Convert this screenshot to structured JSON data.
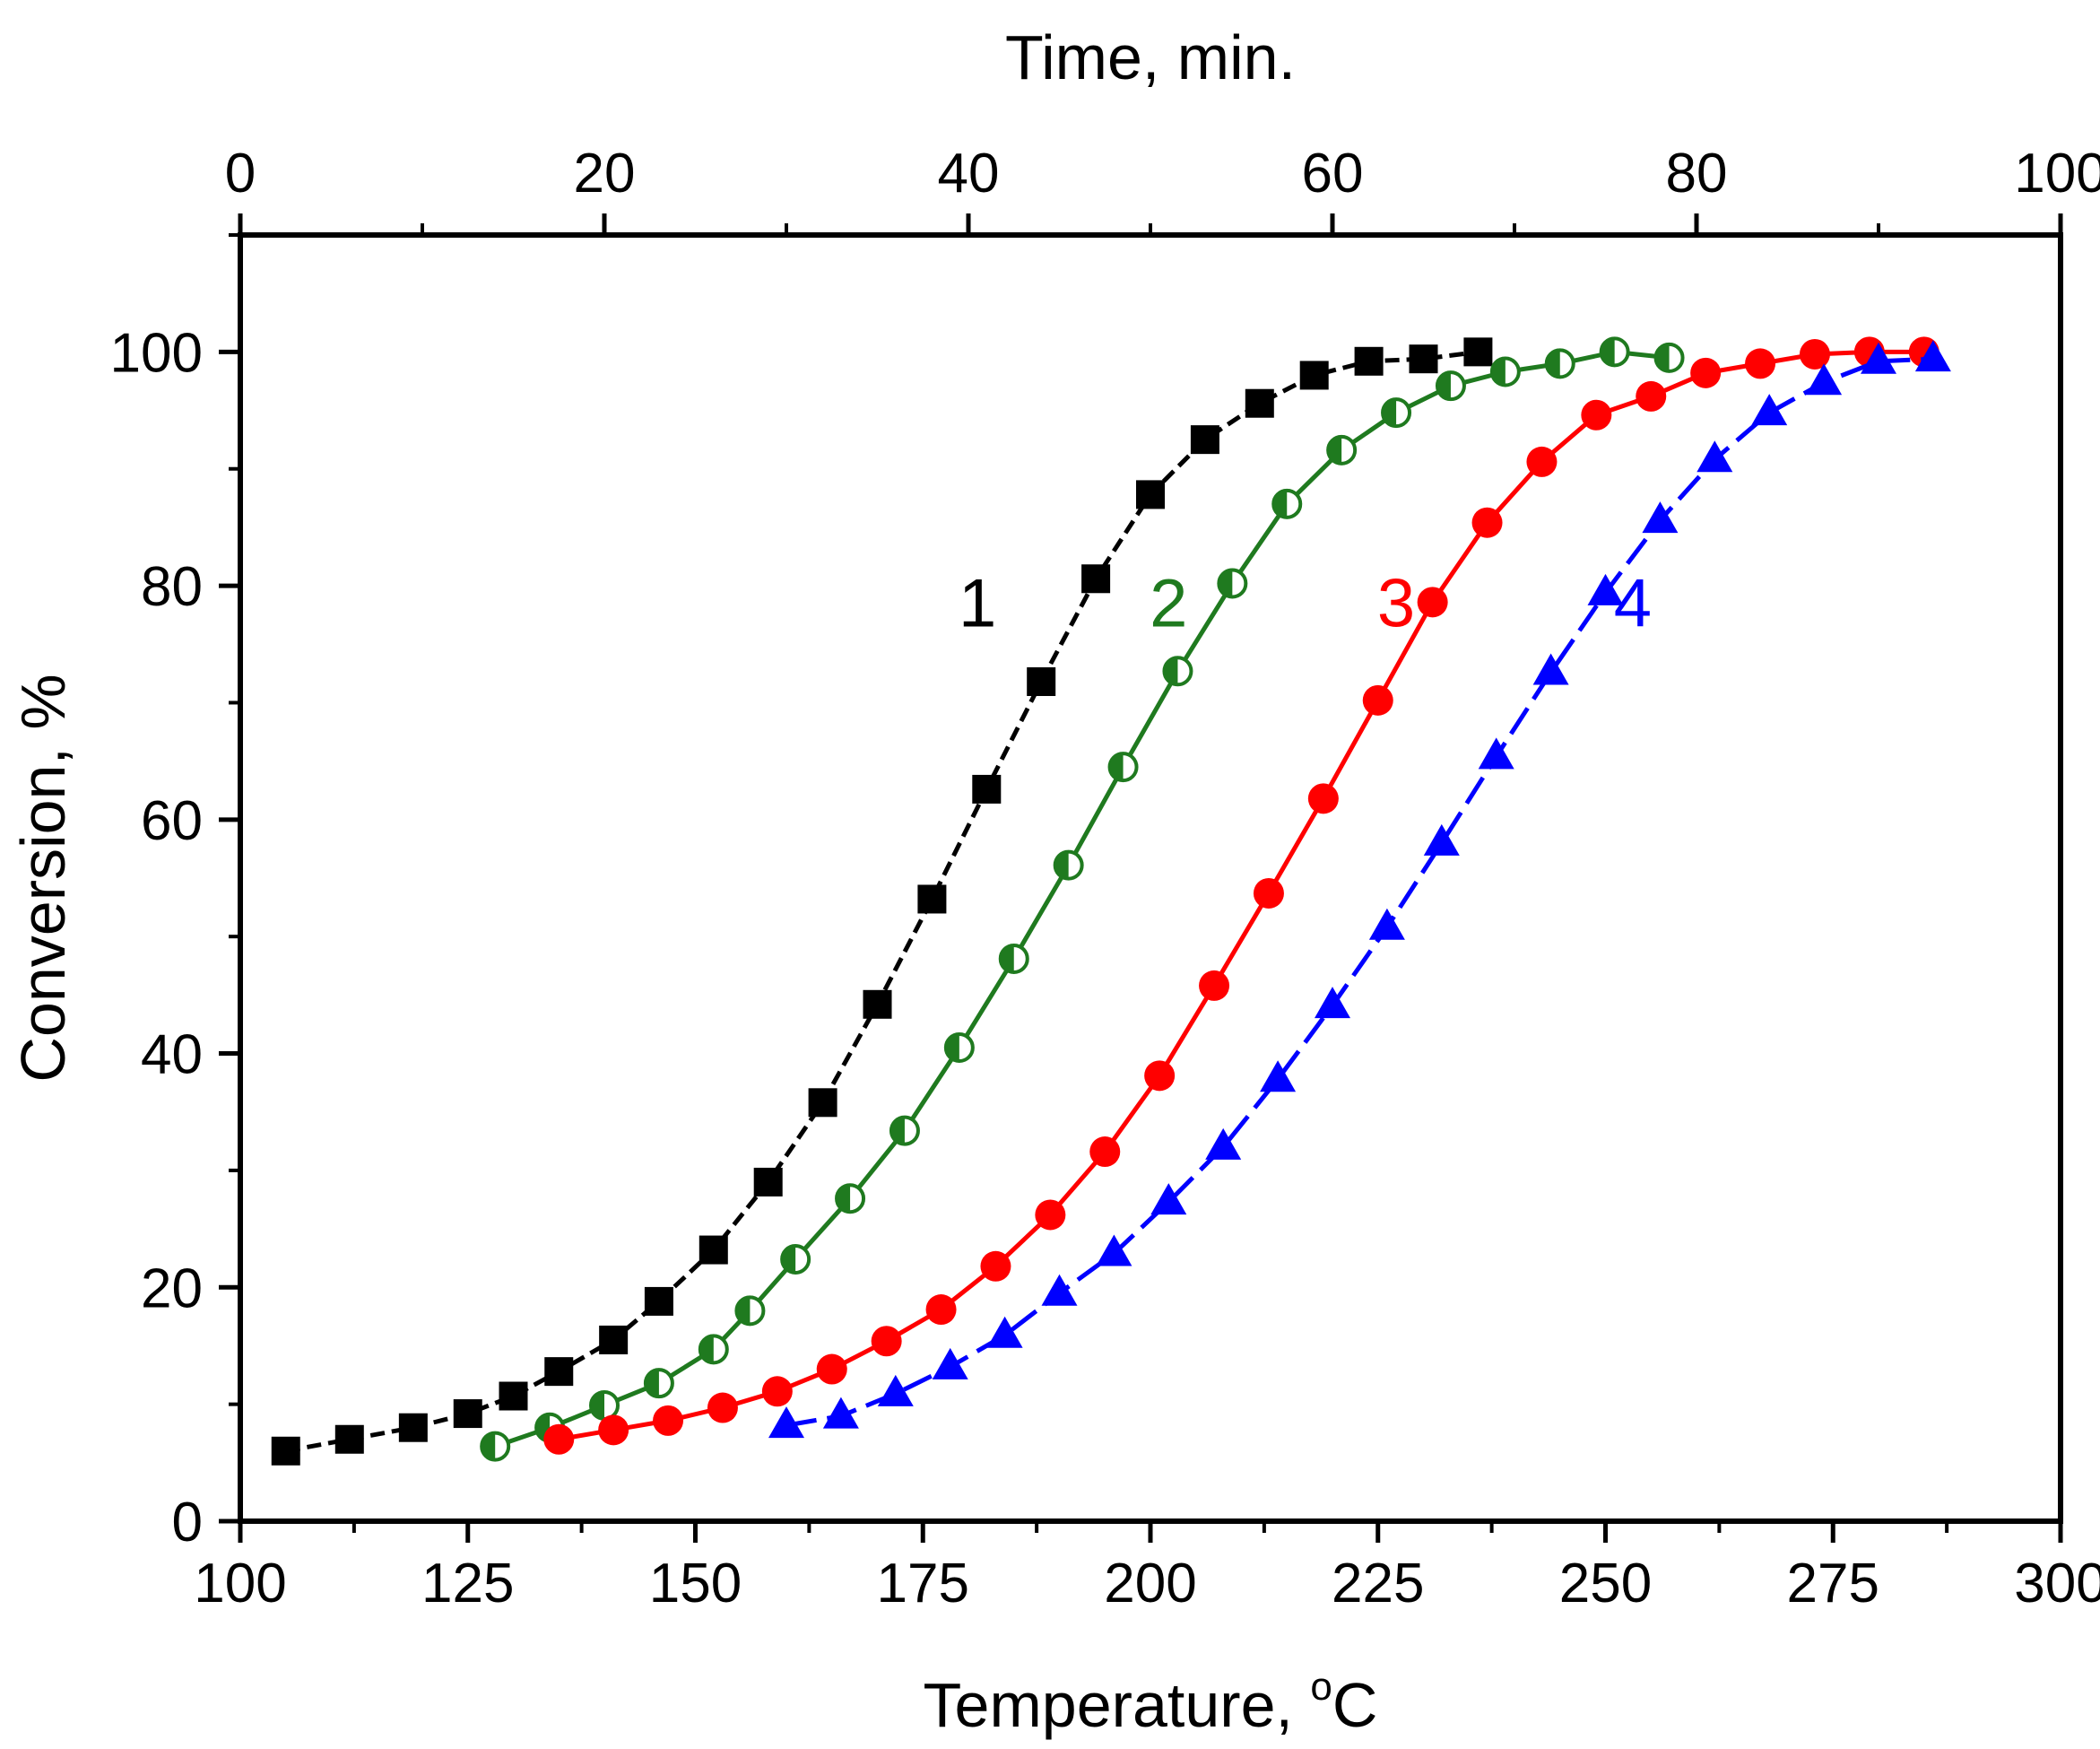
{
  "chart_data": {
    "type": "line",
    "title": "",
    "xlabel": "Temperature, ",
    "xlabel_unit_sup": "o",
    "xlabel_unit": "C",
    "ylabel": "Conversion, %",
    "x2label": "Time, min.",
    "xlim": [
      100,
      300
    ],
    "ylim": [
      0,
      110
    ],
    "x2lim": [
      0,
      100
    ],
    "x_ticks": [
      100,
      125,
      150,
      175,
      200,
      225,
      250,
      275,
      300
    ],
    "y_ticks": [
      0,
      20,
      40,
      60,
      80,
      100
    ],
    "x2_ticks": [
      0,
      20,
      40,
      60,
      80,
      100
    ],
    "grid": false,
    "series": [
      {
        "name": "1",
        "color": "#000000",
        "marker": "square",
        "line": "mixed",
        "x": [
          105,
          112,
          119,
          125,
          130,
          135,
          141,
          146,
          152,
          158,
          164,
          170,
          176,
          182,
          188,
          194,
          200,
          206,
          212,
          218,
          224,
          230,
          236
        ],
        "y": [
          6,
          7,
          8,
          9.2,
          10.7,
          12.8,
          15.5,
          18.8,
          23.2,
          29,
          35.8,
          44.2,
          53.2,
          62.6,
          71.8,
          80.6,
          87.8,
          92.5,
          95.6,
          98,
          99.2,
          99.4,
          100
        ]
      },
      {
        "name": "2",
        "color": "#1f7a1f",
        "marker": "half-filled-circle",
        "line": "solid",
        "x": [
          128,
          134,
          140,
          146,
          152,
          156,
          161,
          167,
          173,
          179,
          185,
          191,
          197,
          203,
          209,
          215,
          221,
          227,
          233,
          239,
          245,
          251,
          257
        ],
        "y": [
          6.4,
          8,
          9.9,
          11.8,
          14.7,
          18,
          22.4,
          27.6,
          33.4,
          40.5,
          48.1,
          56.1,
          64.5,
          72.7,
          80.2,
          87,
          91.6,
          94.8,
          97.1,
          98.3,
          99,
          100,
          99.5
        ]
      },
      {
        "name": "3",
        "color": "#ff0000",
        "marker": "circle",
        "line": "solid",
        "x": [
          135,
          141,
          147,
          153,
          159,
          165,
          171,
          177,
          183,
          189,
          195,
          201,
          207,
          213,
          219,
          225,
          231,
          237,
          243,
          249,
          255,
          261,
          267,
          273,
          279,
          285
        ],
        "y": [
          7,
          7.8,
          8.6,
          9.7,
          11.1,
          13,
          15.4,
          18.1,
          21.8,
          26.2,
          31.6,
          38.1,
          45.8,
          53.7,
          61.8,
          70.2,
          78.6,
          85.4,
          90.6,
          94.6,
          96.2,
          98.2,
          99,
          99.8,
          100,
          100
        ]
      },
      {
        "name": "4",
        "color": "#0000ff",
        "marker": "triangle",
        "line": "dashed",
        "x": [
          160,
          166,
          172,
          178,
          184,
          190,
          196,
          202,
          208,
          214,
          220,
          226,
          232,
          238,
          244,
          250,
          256,
          262,
          268,
          274,
          280,
          286
        ],
        "y": [
          8.2,
          9,
          10.9,
          13.2,
          15.9,
          19.5,
          22.9,
          27.3,
          32,
          37.8,
          44.1,
          50.8,
          58,
          65.4,
          72.6,
          79.4,
          85.6,
          90.8,
          94.8,
          97.4,
          99.2,
          99.4
        ]
      }
    ],
    "curve_labels": [
      {
        "text": "1",
        "color": "#000000",
        "x": 181,
        "y": 76.5
      },
      {
        "text": "2",
        "color": "#1f7a1f",
        "x": 202,
        "y": 76.5
      },
      {
        "text": "3",
        "color": "#ff0000",
        "x": 227,
        "y": 76.5
      },
      {
        "text": "4",
        "color": "#0000ff",
        "x": 253,
        "y": 76.5
      }
    ]
  }
}
